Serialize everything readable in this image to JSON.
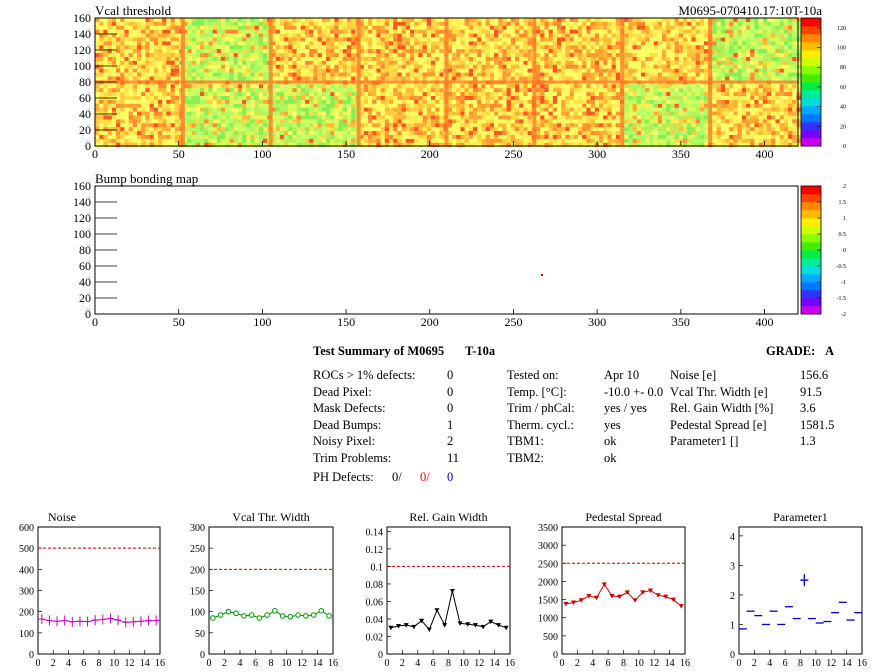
{
  "maps": [
    {
      "title": "Vcal threshold",
      "tag": "M0695-070410.17:10T-10a",
      "xticks": [
        "0",
        "50",
        "100",
        "150",
        "200",
        "250",
        "300",
        "350",
        "400"
      ],
      "yticks": [
        "0",
        "20",
        "40",
        "60",
        "80",
        "100",
        "120",
        "140",
        "160"
      ],
      "palette_ticks": [
        "0",
        "20",
        "40",
        "60",
        "80",
        "100",
        "120"
      ]
    },
    {
      "title": "Bump bonding map",
      "tag": "",
      "xticks": [
        "0",
        "50",
        "100",
        "150",
        "200",
        "250",
        "300",
        "350",
        "400"
      ],
      "yticks": [
        "0",
        "20",
        "40",
        "60",
        "80",
        "100",
        "120",
        "140",
        "160"
      ],
      "palette_ticks": [
        "-2",
        "-1.5",
        "-1",
        "-0.5",
        "0",
        "0.5",
        "1",
        "1.5",
        "2"
      ]
    }
  ],
  "summary": {
    "title": "Test Summary of M0695",
    "tag": "T-10a",
    "grade_label": "GRADE:",
    "grade": "A",
    "left": [
      {
        "label": "ROCs > 1% defects:",
        "value": "0"
      },
      {
        "label": "Dead Pixel:",
        "value": "0"
      },
      {
        "label": "Mask Defects:",
        "value": "0"
      },
      {
        "label": "Dead Bumps:",
        "value": "1"
      },
      {
        "label": "Noisy Pixel:",
        "value": "2"
      },
      {
        "label": "Trim Problems:",
        "value": "11"
      }
    ],
    "ph_label": "PH Defects:",
    "ph_values": [
      {
        "v": "0/",
        "color": "#000000"
      },
      {
        "v": "0/",
        "color": "#ff0000"
      },
      {
        "v": "0",
        "color": "#0000cc"
      }
    ],
    "middle": [
      {
        "label": "Tested on:",
        "value": "Apr 10"
      },
      {
        "label": "Temp. [°C]:",
        "value": "-10.0 +- 0.0"
      },
      {
        "label": "Trim / phCal:",
        "value": "yes / yes"
      },
      {
        "label": "Therm. cycl.:",
        "value": "yes"
      },
      {
        "label": "TBM1:",
        "value": "ok"
      },
      {
        "label": "TBM2:",
        "value": "ok"
      }
    ],
    "right": [
      {
        "label": "Noise [e]",
        "value": "156.6"
      },
      {
        "label": "Vcal Thr. Width [e]",
        "value": "91.5"
      },
      {
        "label": "Rel. Gain Width [%]",
        "value": "3.6"
      },
      {
        "label": "Pedestal Spread [e]",
        "value": "1581.5"
      },
      {
        "label": "Parameter1 []",
        "value": "1.3"
      }
    ]
  },
  "chart_data": [
    {
      "type": "line",
      "title": "Noise",
      "color": "#cc00cc",
      "marker": "err",
      "x": [
        0,
        1,
        2,
        3,
        4,
        5,
        6,
        7,
        8,
        9,
        10,
        11,
        12,
        13,
        14,
        15
      ],
      "values": [
        165,
        158,
        155,
        158,
        152,
        155,
        153,
        160,
        163,
        168,
        160,
        150,
        152,
        155,
        158,
        158
      ],
      "ylim": [
        0,
        600
      ],
      "yticks": [
        "0",
        "100",
        "200",
        "300",
        "400",
        "500",
        "600"
      ],
      "xlim": [
        0,
        16
      ],
      "xticks": [
        "0",
        "2",
        "4",
        "6",
        "8",
        "10",
        "12",
        "14",
        "16"
      ],
      "threshold": 500
    },
    {
      "type": "line",
      "title": "Vcal Thr. Width",
      "color": "#009900",
      "marker": "circle",
      "x": [
        0,
        1,
        2,
        3,
        4,
        5,
        6,
        7,
        8,
        9,
        10,
        11,
        12,
        13,
        14,
        15
      ],
      "values": [
        85,
        92,
        100,
        96,
        90,
        92,
        85,
        92,
        102,
        90,
        88,
        92,
        90,
        92,
        102,
        90
      ],
      "ylim": [
        0,
        300
      ],
      "yticks": [
        "0",
        "50",
        "100",
        "150",
        "200",
        "250",
        "300"
      ],
      "xlim": [
        0,
        16
      ],
      "xticks": [
        "0",
        "2",
        "4",
        "6",
        "8",
        "10",
        "12",
        "14",
        "16"
      ],
      "threshold": 200
    },
    {
      "type": "line",
      "title": "Rel. Gain Width",
      "color": "#000000",
      "marker": "tri",
      "x": [
        0,
        1,
        2,
        3,
        4,
        5,
        6,
        7,
        8,
        9,
        10,
        11,
        12,
        13,
        14,
        15
      ],
      "values": [
        0.03,
        0.032,
        0.033,
        0.031,
        0.038,
        0.028,
        0.05,
        0.033,
        0.072,
        0.035,
        0.034,
        0.033,
        0.031,
        0.037,
        0.033,
        0.03
      ],
      "ylim": [
        0,
        0.145
      ],
      "yticks": [
        "0",
        "0.02",
        "0.04",
        "0.06",
        "0.08",
        "0.1",
        "0.12",
        "0.14"
      ],
      "xlim": [
        0,
        16
      ],
      "xticks": [
        "0",
        "2",
        "4",
        "6",
        "8",
        "10",
        "12",
        "14",
        "16"
      ],
      "threshold": 0.1
    },
    {
      "type": "line",
      "title": "Pedestal Spread",
      "color": "#cc0000",
      "marker": "tri",
      "x": [
        0,
        1,
        2,
        3,
        4,
        5,
        6,
        7,
        8,
        9,
        10,
        11,
        12,
        13,
        14,
        15
      ],
      "values": [
        1380,
        1420,
        1480,
        1600,
        1550,
        1920,
        1600,
        1580,
        1700,
        1480,
        1700,
        1750,
        1620,
        1580,
        1500,
        1320
      ],
      "ylim": [
        0,
        3500
      ],
      "yticks": [
        "0",
        "500",
        "1000",
        "1500",
        "2000",
        "2500",
        "3000",
        "3500"
      ],
      "xlim": [
        0,
        16
      ],
      "xticks": [
        "0",
        "2",
        "4",
        "6",
        "8",
        "10",
        "12",
        "14",
        "16"
      ],
      "threshold": 2500
    },
    {
      "type": "scatter",
      "title": "Parameter1",
      "color": "#0000cc",
      "marker": "hbar",
      "x": [
        0,
        1,
        2,
        3,
        4,
        5,
        6,
        7,
        8,
        9,
        10,
        11,
        12,
        13,
        14,
        15
      ],
      "values": [
        0.85,
        1.45,
        1.3,
        1.0,
        1.45,
        1.0,
        1.6,
        1.2,
        2.5,
        1.2,
        1.05,
        1.1,
        1.4,
        1.75,
        1.15,
        1.4
      ],
      "ylim": [
        0,
        4.3
      ],
      "yticks": [
        "0",
        "1",
        "2",
        "3",
        "4"
      ],
      "xlim": [
        0,
        16
      ],
      "xticks": [
        "0",
        "2",
        "4",
        "6",
        "8",
        "10",
        "12",
        "14",
        "16"
      ],
      "threshold": null
    }
  ]
}
